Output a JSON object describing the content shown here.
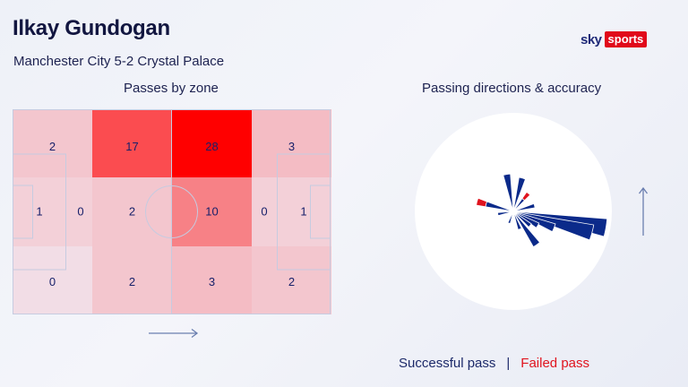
{
  "header": {
    "title": "Ilkay Gundogan",
    "subtitle": "Manchester City 5-2 Crystal Palace",
    "logo_sky": "sky",
    "logo_sports": "sports"
  },
  "panels": {
    "zones_label": "Passes by zone",
    "directions_label": "Passing directions & accuracy"
  },
  "legend": {
    "successful": "Successful pass",
    "separator": "|",
    "failed": "Failed pass"
  },
  "colors": {
    "successful": "#0b2a8a",
    "failed": "#e0141e",
    "zone_max": "#ff0000",
    "zone_min": "#f2dde6"
  },
  "chart_data": [
    {
      "type": "heatmap",
      "title": "Passes by zone",
      "attack_direction": "right",
      "zones": [
        {
          "row": 0,
          "col": 0,
          "value": 2
        },
        {
          "row": 0,
          "col": 1,
          "value": 17
        },
        {
          "row": 0,
          "col": 2,
          "value": 28
        },
        {
          "row": 0,
          "col": 3,
          "value": 3
        },
        {
          "row": 1,
          "col": 0,
          "value": 1,
          "part": "left"
        },
        {
          "row": 1,
          "col": 0,
          "value": 0,
          "part": "right"
        },
        {
          "row": 1,
          "col": 1,
          "value": 2
        },
        {
          "row": 1,
          "col": 2,
          "value": 10
        },
        {
          "row": 1,
          "col": 3,
          "value": 0,
          "part": "left"
        },
        {
          "row": 1,
          "col": 3,
          "value": 1,
          "part": "right"
        },
        {
          "row": 2,
          "col": 0,
          "value": 0
        },
        {
          "row": 2,
          "col": 1,
          "value": 2
        },
        {
          "row": 2,
          "col": 2,
          "value": 3
        },
        {
          "row": 2,
          "col": 3,
          "value": 2
        }
      ]
    },
    {
      "type": "pie",
      "subtype": "rose",
      "title": "Passing directions & accuracy",
      "attack_direction": "up",
      "wedges": [
        {
          "angle": 100,
          "successful": 3.0,
          "failed": 0
        },
        {
          "angle": 105,
          "successful": 2.6,
          "failed": 0
        },
        {
          "angle": 112,
          "successful": 1.4,
          "failed": 0
        },
        {
          "angle": 120,
          "successful": 0.9,
          "failed": 0
        },
        {
          "angle": 130,
          "successful": 0.7,
          "failed": 0
        },
        {
          "angle": 145,
          "successful": 1.3,
          "failed": 0
        },
        {
          "angle": 160,
          "successful": 0.6,
          "failed": 0
        },
        {
          "angle": 200,
          "successful": 0.4,
          "failed": 0
        },
        {
          "angle": 260,
          "successful": 0.5,
          "failed": 0
        },
        {
          "angle": 285,
          "successful": 0.9,
          "failed": 0.3
        },
        {
          "angle": 350,
          "successful": 1.2,
          "failed": 0
        },
        {
          "angle": 15,
          "successful": 1.1,
          "failed": 0
        },
        {
          "angle": 40,
          "successful": 0.5,
          "failed": 0.25
        },
        {
          "angle": 75,
          "successful": 0.7,
          "failed": 0
        }
      ]
    }
  ]
}
